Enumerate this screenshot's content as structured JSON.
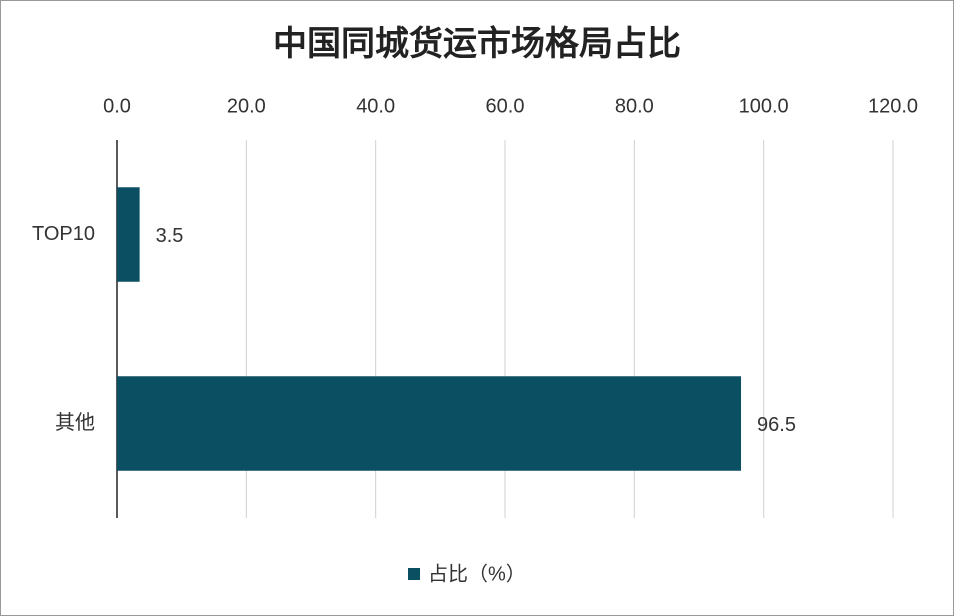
{
  "chart_data": {
    "type": "bar",
    "orientation": "horizontal",
    "title": "中国同城货运市场格局占比",
    "categories": [
      "TOP10",
      "其他"
    ],
    "series": [
      {
        "name": "占比（%）",
        "color": "#0b4f63",
        "values": [
          3.5,
          96.5
        ]
      }
    ],
    "xlim": [
      0,
      120
    ],
    "xticks": [
      {
        "value": 0,
        "label": "0.0"
      },
      {
        "value": 20,
        "label": "20.0"
      },
      {
        "value": 40,
        "label": "40.0"
      },
      {
        "value": 60,
        "label": "60.0"
      },
      {
        "value": 80,
        "label": "80.0"
      },
      {
        "value": 100,
        "label": "100.0"
      },
      {
        "value": 120,
        "label": "120.0"
      }
    ],
    "grid": true,
    "legend": "bottom"
  }
}
